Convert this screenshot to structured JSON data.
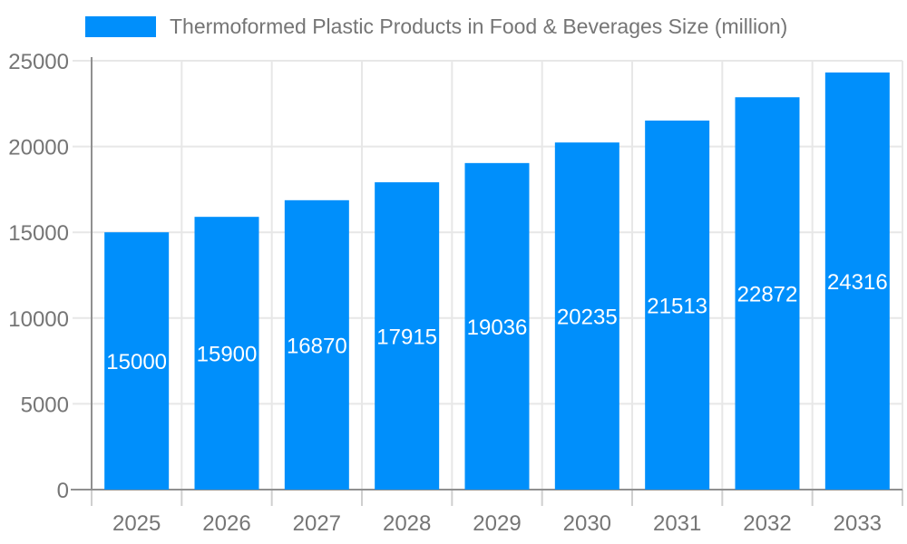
{
  "chart_data": {
    "type": "bar",
    "title": "Thermoformed Plastic Products in Food & Beverages Size (million)",
    "categories": [
      "2025",
      "2026",
      "2027",
      "2028",
      "2029",
      "2030",
      "2031",
      "2032",
      "2033"
    ],
    "values": [
      15000,
      15900,
      16870,
      17915,
      19036,
      20235,
      21513,
      22872,
      24316
    ],
    "xlabel": "",
    "ylabel": "",
    "ylim": [
      0,
      25000
    ],
    "yticks": [
      0,
      5000,
      10000,
      15000,
      20000,
      25000
    ],
    "grid": true,
    "legend_position": "top",
    "bar_color": "#008FFB",
    "colors": {
      "text": "#757575",
      "axis": "#909090",
      "grid": "#e7e7e7",
      "tick": "#cfcfcf",
      "value_label": "#ffffff",
      "background": "#ffffff"
    }
  }
}
